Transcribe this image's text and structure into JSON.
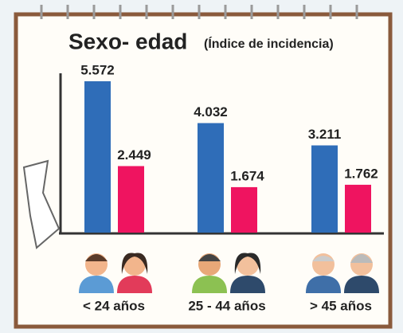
{
  "chart_data": {
    "type": "bar",
    "title": "Sexo- edad",
    "subtitle": "(Índice de incidencia)",
    "categories": [
      "< 24 años",
      "25 - 44 años",
      "> 45 años"
    ],
    "series": [
      {
        "color": "#2f6db8",
        "values": [
          5.572,
          4.032,
          3.211
        ]
      },
      {
        "color": "#ef1460",
        "values": [
          2.449,
          1.674,
          1.762
        ]
      }
    ]
  }
}
